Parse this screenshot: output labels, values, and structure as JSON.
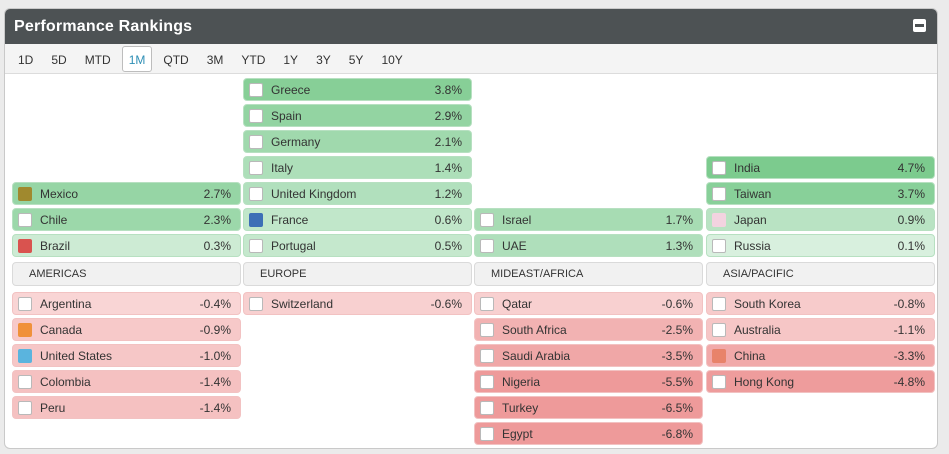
{
  "header": {
    "title": "Performance Rankings"
  },
  "tabs": [
    {
      "label": "1D",
      "active": false
    },
    {
      "label": "5D",
      "active": false
    },
    {
      "label": "MTD",
      "active": false
    },
    {
      "label": "1M",
      "active": true
    },
    {
      "label": "QTD",
      "active": false
    },
    {
      "label": "3M",
      "active": false
    },
    {
      "label": "YTD",
      "active": false
    },
    {
      "label": "1Y",
      "active": false
    },
    {
      "label": "3Y",
      "active": false
    },
    {
      "label": "5Y",
      "active": false
    },
    {
      "label": "10Y",
      "active": false
    }
  ],
  "regions": [
    {
      "name": "AMERICAS",
      "positive": [
        {
          "country": "Mexico",
          "value": "2.7%",
          "pct": 2.7,
          "swatch": "#a0892e"
        },
        {
          "country": "Chile",
          "value": "2.3%",
          "pct": 2.3,
          "swatch": null
        },
        {
          "country": "Brazil",
          "value": "0.3%",
          "pct": 0.3,
          "swatch": "#d9534f"
        }
      ],
      "negative": [
        {
          "country": "Argentina",
          "value": "-0.4%",
          "pct": -0.4,
          "swatch": null
        },
        {
          "country": "Canada",
          "value": "-0.9%",
          "pct": -0.9,
          "swatch": "#f0913a"
        },
        {
          "country": "United States",
          "value": "-1.0%",
          "pct": -1.0,
          "swatch": "#5ab4de"
        },
        {
          "country": "Colombia",
          "value": "-1.4%",
          "pct": -1.4,
          "swatch": null
        },
        {
          "country": "Peru",
          "value": "-1.4%",
          "pct": -1.4,
          "swatch": null
        }
      ]
    },
    {
      "name": "EUROPE",
      "positive": [
        {
          "country": "Greece",
          "value": "3.8%",
          "pct": 3.8,
          "swatch": null
        },
        {
          "country": "Spain",
          "value": "2.9%",
          "pct": 2.9,
          "swatch": null
        },
        {
          "country": "Germany",
          "value": "2.1%",
          "pct": 2.1,
          "swatch": null
        },
        {
          "country": "Italy",
          "value": "1.4%",
          "pct": 1.4,
          "swatch": null
        },
        {
          "country": "United Kingdom",
          "value": "1.2%",
          "pct": 1.2,
          "swatch": null
        },
        {
          "country": "France",
          "value": "0.6%",
          "pct": 0.6,
          "swatch": "#3d6fb6"
        },
        {
          "country": "Portugal",
          "value": "0.5%",
          "pct": 0.5,
          "swatch": null
        }
      ],
      "negative": [
        {
          "country": "Switzerland",
          "value": "-0.6%",
          "pct": -0.6,
          "swatch": null
        }
      ]
    },
    {
      "name": "MIDEAST/AFRICA",
      "positive": [
        {
          "country": "Israel",
          "value": "1.7%",
          "pct": 1.7,
          "swatch": null
        },
        {
          "country": "UAE",
          "value": "1.3%",
          "pct": 1.3,
          "swatch": null
        }
      ],
      "negative": [
        {
          "country": "Qatar",
          "value": "-0.6%",
          "pct": -0.6,
          "swatch": null
        },
        {
          "country": "South Africa",
          "value": "-2.5%",
          "pct": -2.5,
          "swatch": null
        },
        {
          "country": "Saudi Arabia",
          "value": "-3.5%",
          "pct": -3.5,
          "swatch": null
        },
        {
          "country": "Nigeria",
          "value": "-5.5%",
          "pct": -5.5,
          "swatch": null
        },
        {
          "country": "Turkey",
          "value": "-6.5%",
          "pct": -6.5,
          "swatch": null
        },
        {
          "country": "Egypt",
          "value": "-6.8%",
          "pct": -6.8,
          "swatch": null
        }
      ]
    },
    {
      "name": "ASIA/PACIFIC",
      "positive": [
        {
          "country": "India",
          "value": "4.7%",
          "pct": 4.7,
          "swatch": null
        },
        {
          "country": "Taiwan",
          "value": "3.7%",
          "pct": 3.7,
          "swatch": null
        },
        {
          "country": "Japan",
          "value": "0.9%",
          "pct": 0.9,
          "swatch": "#f3d3e0"
        },
        {
          "country": "Russia",
          "value": "0.1%",
          "pct": 0.1,
          "swatch": null
        }
      ],
      "negative": [
        {
          "country": "South Korea",
          "value": "-0.8%",
          "pct": -0.8,
          "swatch": null
        },
        {
          "country": "Australia",
          "value": "-1.1%",
          "pct": -1.1,
          "swatch": null
        },
        {
          "country": "China",
          "value": "-3.3%",
          "pct": -3.3,
          "swatch": "#e8836a"
        },
        {
          "country": "Hong Kong",
          "value": "-4.8%",
          "pct": -4.8,
          "swatch": null
        }
      ]
    }
  ],
  "colors": {
    "positive_strong": "#7ccb8e",
    "positive_light": "#e8f6ec",
    "negative_strong": "#ee9a9a",
    "negative_light": "#fdecec",
    "header_bg": "#4d5254",
    "active_tab": "#2e8fb5"
  }
}
